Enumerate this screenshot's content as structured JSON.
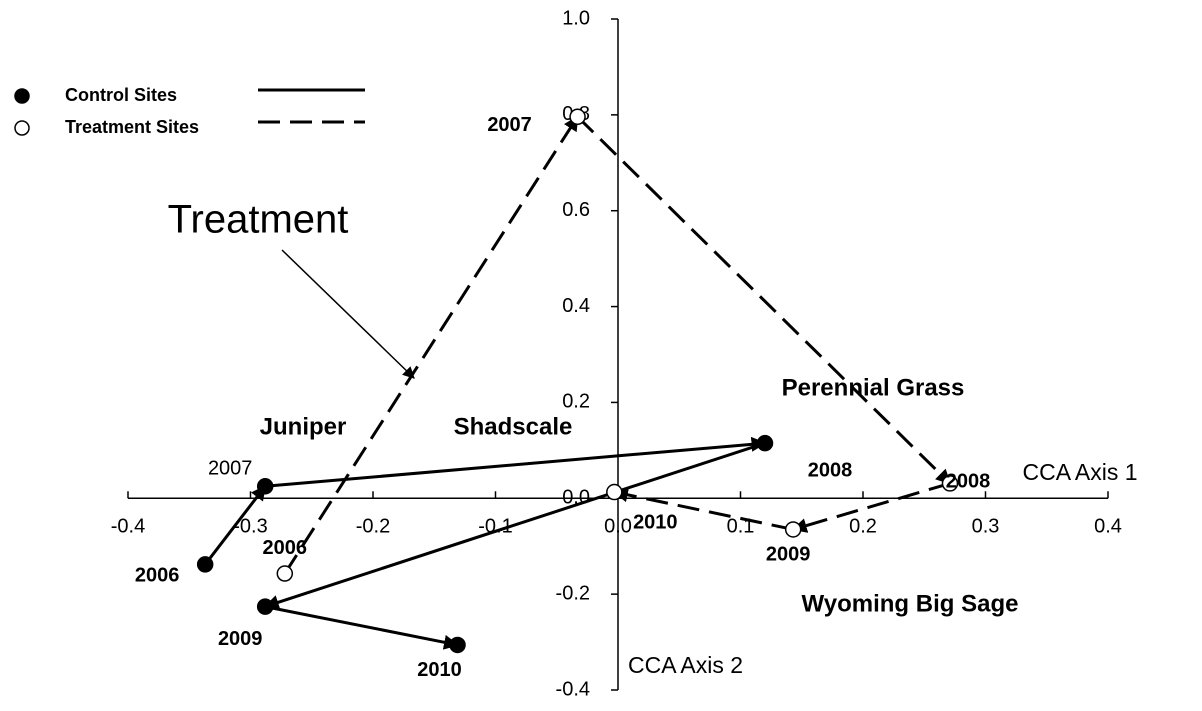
{
  "chart_data": {
    "type": "scatter",
    "xlabel": "CCA Axis 1",
    "ylabel": "CCA Axis 2",
    "xlim": [
      -0.4,
      0.4
    ],
    "ylim": [
      -0.4,
      1.0
    ],
    "xticks": [
      -0.4,
      -0.3,
      -0.2,
      -0.1,
      {
        "value": 0,
        "label": "0.0"
      },
      0.1,
      0.2,
      0.3,
      0.4
    ],
    "yticks": [
      -0.4,
      -0.2,
      {
        "value": 0,
        "label": "0.0"
      },
      0.2,
      0.4,
      0.6,
      0.8,
      {
        "value": 1,
        "label": "1.0"
      }
    ],
    "legend": "upper left",
    "series": [
      {
        "name": "Control Sites",
        "color": "#000000",
        "marker": "filled",
        "line": "solid",
        "labels": [
          "2006",
          "2007",
          "2008",
          "2009",
          "2010"
        ],
        "x": [
          -0.337,
          -0.288,
          0.12,
          -0.288,
          -0.131
        ],
        "values": [
          -0.138,
          0.025,
          0.115,
          -0.226,
          -0.306
        ]
      },
      {
        "name": "Treatment Sites",
        "color": "#000000",
        "marker": "open",
        "line": "dashed",
        "labels": [
          "2006",
          "2007",
          "2008",
          "2009",
          "2010"
        ],
        "x": [
          -0.272,
          -0.033,
          0.271,
          0.143,
          -0.003
        ],
        "values": [
          -0.157,
          0.796,
          0.031,
          -0.065,
          0.013
        ]
      }
    ],
    "annotations": [
      "Juniper",
      "Shadscale",
      "Perennial Grass",
      "Wyoming Big Sage",
      "Treatment"
    ]
  }
}
